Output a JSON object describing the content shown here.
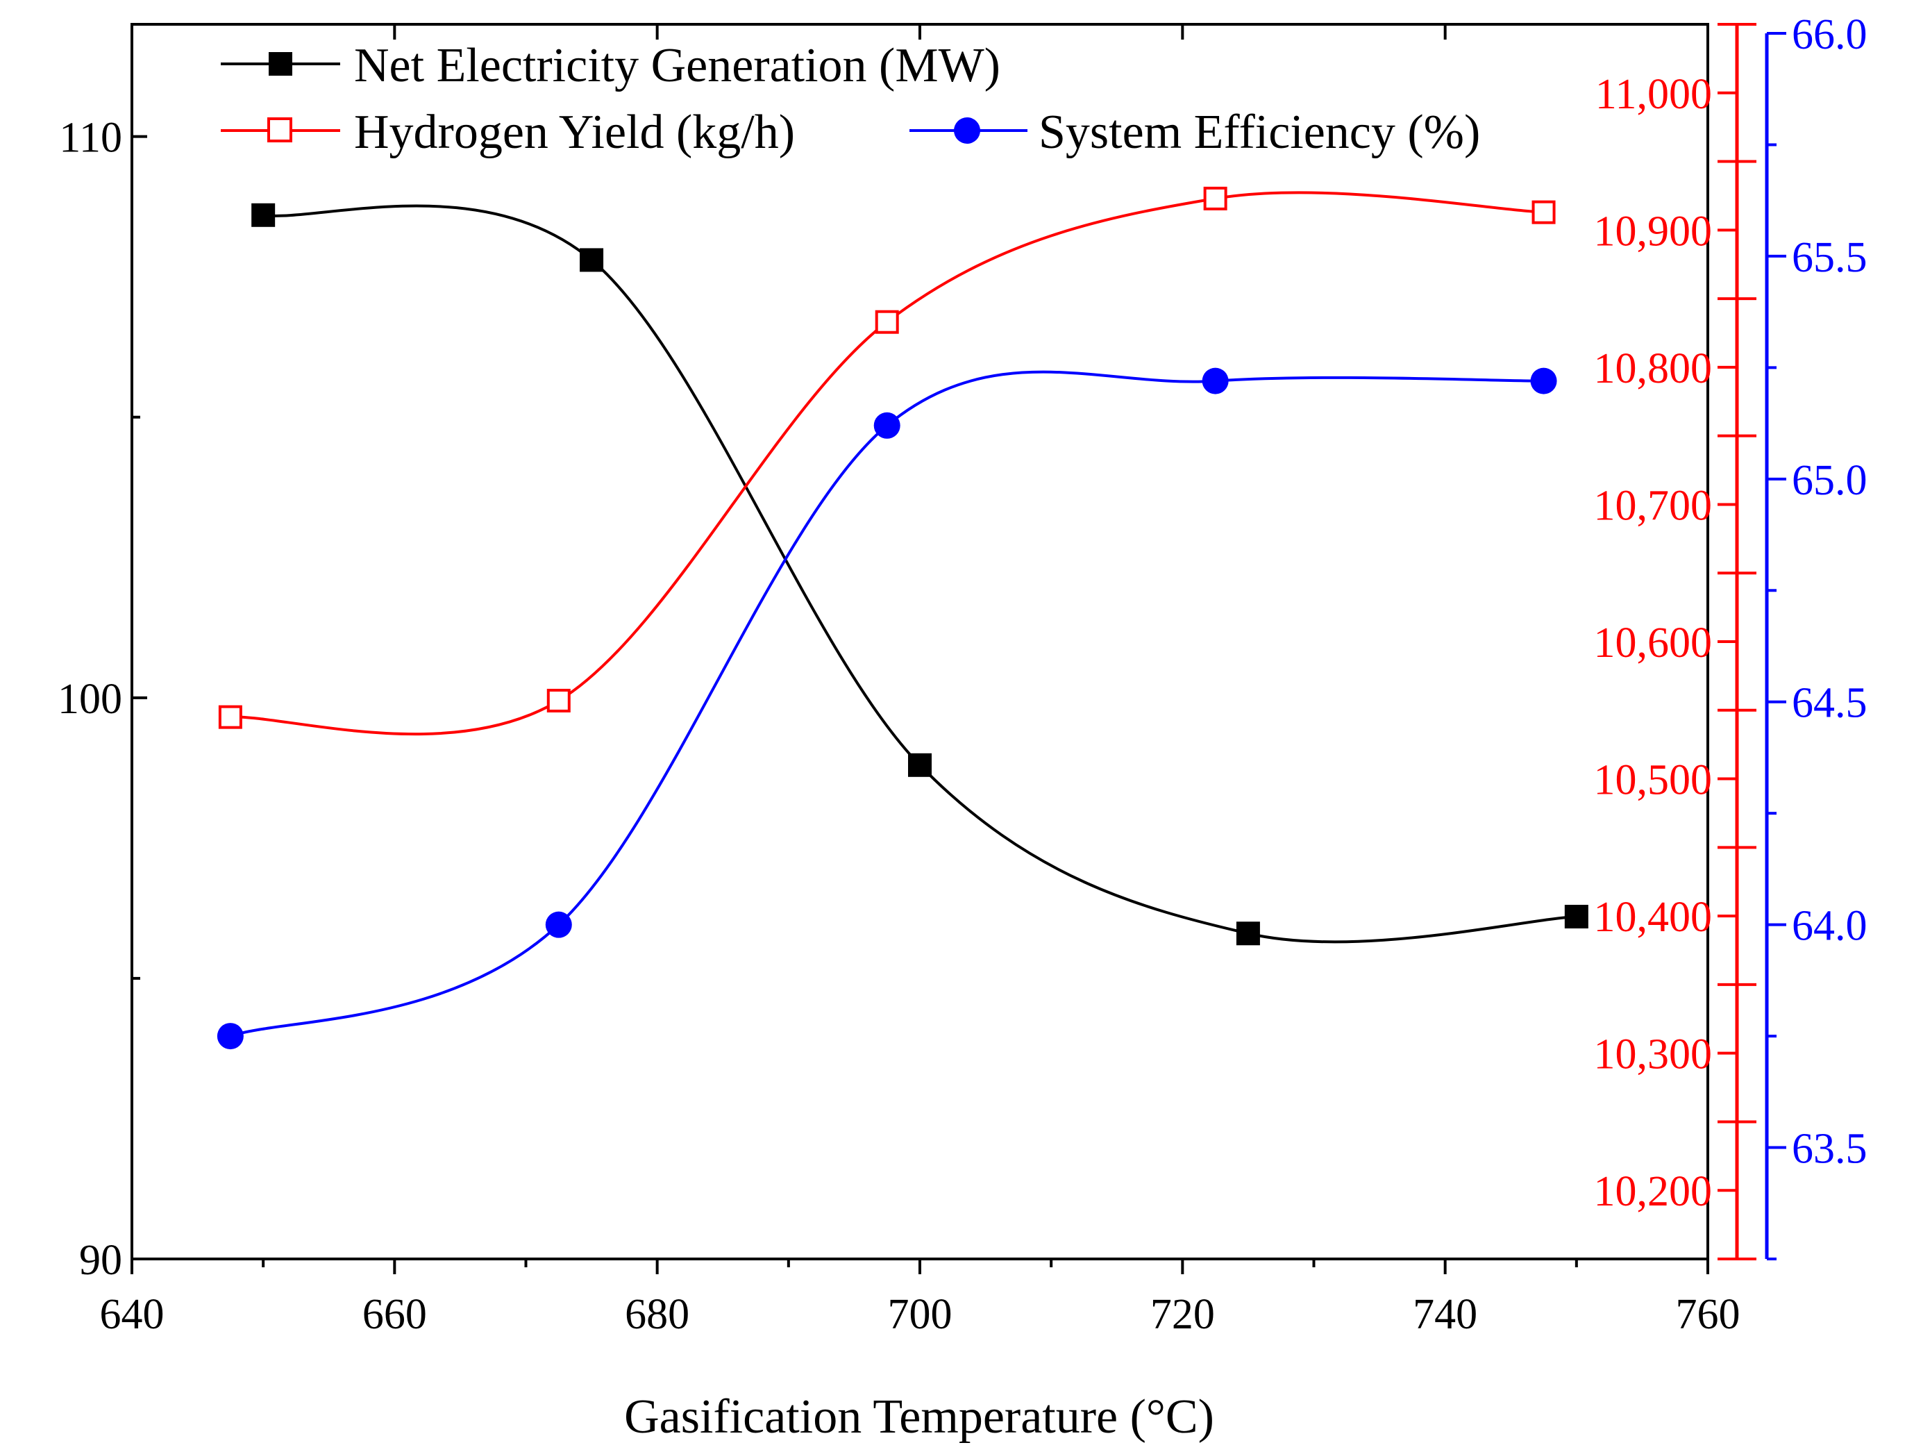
{
  "chart_data": {
    "type": "line",
    "title": "",
    "xlabel": "Gasification Temperature (°C)",
    "xlim": [
      640,
      760
    ],
    "x_ticks": [
      "640",
      "660",
      "680",
      "700",
      "720",
      "740",
      "760"
    ],
    "axes": {
      "left": {
        "ylim": [
          90,
          112
        ],
        "ticks": [
          {
            "value": 90,
            "label": "90"
          },
          {
            "value": 100,
            "label": "100"
          },
          {
            "value": 110,
            "label": "110"
          }
        ],
        "color": "#000000"
      },
      "right_red": {
        "ylim": [
          10150,
          11050
        ],
        "ticks": [
          {
            "value": 10200,
            "label": "10,200"
          },
          {
            "value": 10300,
            "label": "10,300"
          },
          {
            "value": 10400,
            "label": "10,400"
          },
          {
            "value": 10500,
            "label": "10,500"
          },
          {
            "value": 10600,
            "label": "10,600"
          },
          {
            "value": 10700,
            "label": "10,700"
          },
          {
            "value": 10800,
            "label": "10,800"
          },
          {
            "value": 10900,
            "label": "10,900"
          },
          {
            "value": 11000,
            "label": "11,000"
          }
        ],
        "color": "#ff0000"
      },
      "right_blue": {
        "ylim": [
          63.25,
          66.0
        ],
        "ticks": [
          {
            "value": 63.5,
            "label": "63.5"
          },
          {
            "value": 64.0,
            "label": "64.0"
          },
          {
            "value": 64.5,
            "label": "64.5"
          },
          {
            "value": 65.0,
            "label": "65.0"
          },
          {
            "value": 65.5,
            "label": "65.5"
          },
          {
            "value": 66.0,
            "label": "66.0"
          }
        ],
        "color": "#0000ff"
      }
    },
    "series": [
      {
        "name": "Net Electricity Generation (MW)",
        "axis": "left",
        "color": "#000000",
        "marker": "filled-square",
        "x": [
          650,
          675,
          700,
          725,
          750
        ],
        "values": [
          108.6,
          107.8,
          98.8,
          95.8,
          96.1
        ]
      },
      {
        "name": "Hydrogen Yield (kg/h)",
        "axis": "right_red",
        "color": "#ff0000",
        "marker": "open-square",
        "x": [
          647.5,
          672.5,
          697.5,
          722.5,
          747.5
        ],
        "values": [
          10545,
          10557,
          10833,
          10923,
          10913
        ]
      },
      {
        "name": "System Efficiency (%)",
        "axis": "right_blue",
        "color": "#0000ff",
        "marker": "filled-circle",
        "x": [
          647.5,
          672.5,
          697.5,
          722.5,
          747.5
        ],
        "values": [
          63.75,
          64.0,
          65.12,
          65.22,
          65.22
        ]
      }
    ],
    "legend_position": "top-left"
  }
}
